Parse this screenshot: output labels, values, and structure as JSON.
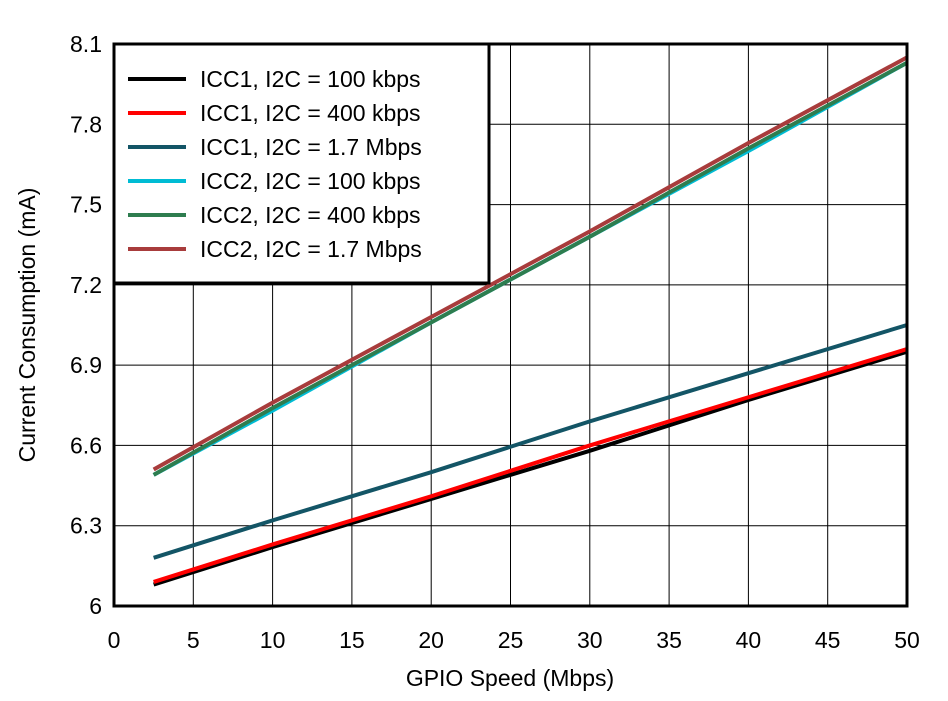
{
  "chart_data": {
    "type": "line",
    "title": "",
    "xlabel": "GPIO Speed (Mbps)",
    "ylabel": "Current Consumption (mA)",
    "xlim": [
      0,
      50
    ],
    "ylim": [
      6,
      8.1
    ],
    "xticks": [
      0,
      5,
      10,
      15,
      20,
      25,
      30,
      35,
      40,
      45,
      50
    ],
    "yticks": [
      6,
      6.3,
      6.6,
      6.9,
      7.2,
      7.5,
      7.8,
      8.1
    ],
    "ytick_labels": [
      "6",
      "6.3",
      "6.6",
      "6.9",
      "7.2",
      "7.5",
      "7.8",
      "8.1"
    ],
    "grid": true,
    "legend_position": "top-left",
    "x": [
      2.5,
      10,
      20,
      30,
      40,
      50
    ],
    "series": [
      {
        "name": "ICC1, I2C = 100 kbps",
        "color": "#000000",
        "values": [
          6.08,
          6.22,
          6.4,
          6.58,
          6.77,
          6.95
        ]
      },
      {
        "name": "ICC1, I2C = 400 kbps",
        "color": "#ff0000",
        "values": [
          6.09,
          6.23,
          6.41,
          6.6,
          6.78,
          6.96
        ]
      },
      {
        "name": "ICC1, I2C = 1.7 Mbps",
        "color": "#135566",
        "values": [
          6.18,
          6.32,
          6.5,
          6.69,
          6.87,
          7.05
        ]
      },
      {
        "name": "ICC2, I2C = 100 kbps",
        "color": "#00bcd4",
        "values": [
          6.49,
          6.73,
          7.06,
          7.38,
          7.7,
          8.03
        ]
      },
      {
        "name": "ICC2, I2C = 400 kbps",
        "color": "#2e7d4f",
        "values": [
          6.49,
          6.74,
          7.06,
          7.38,
          7.71,
          8.03
        ]
      },
      {
        "name": "ICC2, I2C = 1.7 Mbps",
        "color": "#a83c3c",
        "values": [
          6.51,
          6.76,
          7.08,
          7.4,
          7.73,
          8.05
        ]
      }
    ]
  }
}
